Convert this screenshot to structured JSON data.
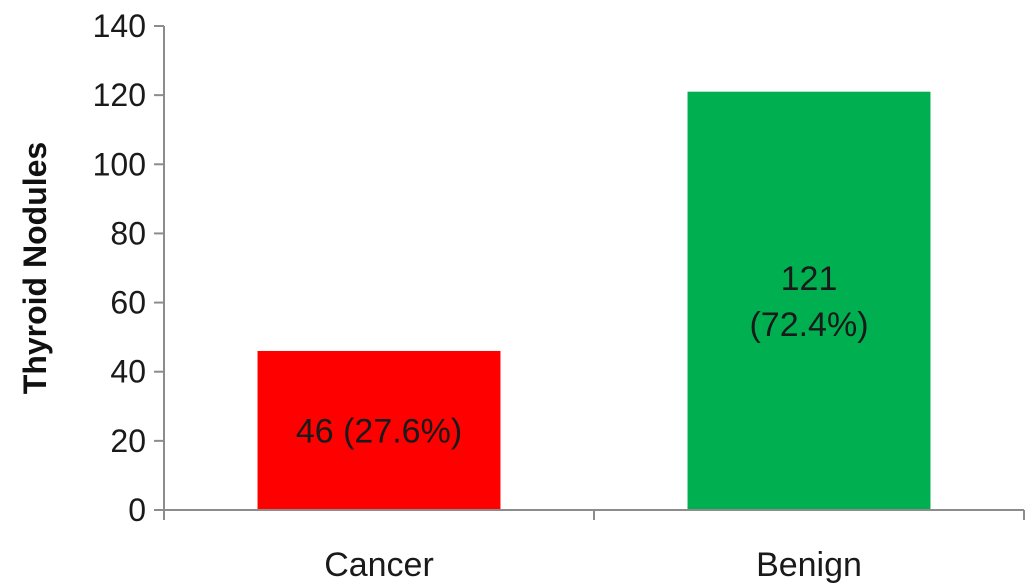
{
  "chart_data": {
    "type": "bar",
    "title": "",
    "xlabel": "",
    "ylabel": "Thyroid Nodules",
    "ylim": [
      0,
      140
    ],
    "yticks": [
      0,
      20,
      40,
      60,
      80,
      100,
      120,
      140
    ],
    "grid": false,
    "categories": [
      "Cancer",
      "Benign"
    ],
    "values": [
      46,
      121
    ],
    "bar_colors": [
      "#ff0000",
      "#00b050"
    ],
    "data_labels": [
      [
        "46 (27.6%)"
      ],
      [
        "121",
        "(72.4%)"
      ]
    ]
  }
}
